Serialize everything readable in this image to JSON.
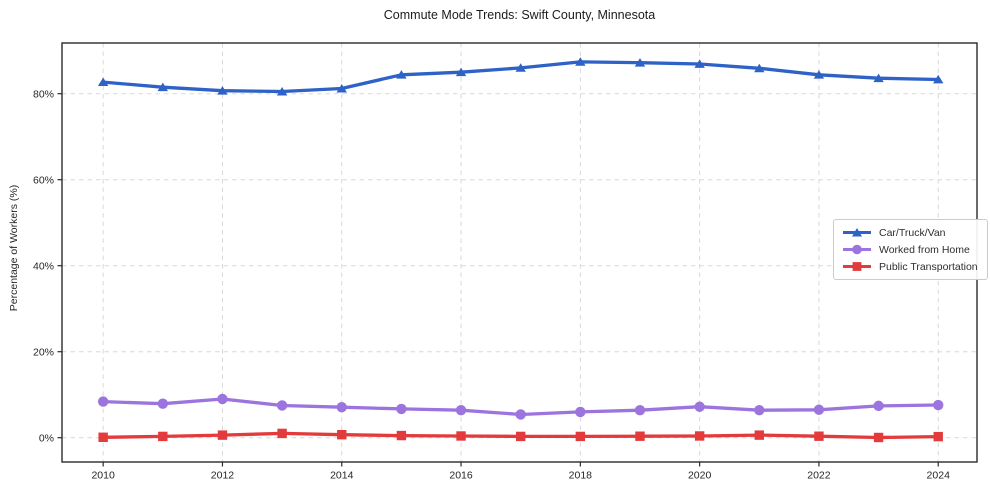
{
  "figure": {
    "title": "Commute Mode Trends: Swift County, Minnesota",
    "background_color": "#ffffff"
  },
  "chart_data": {
    "type": "line",
    "title": "Commute Mode Trends: Swift County, Minnesota",
    "xlabel": "",
    "ylabel": "Percentage of Workers (%)",
    "x": [
      2010,
      2011,
      2012,
      2013,
      2014,
      2015,
      2016,
      2017,
      2018,
      2019,
      2020,
      2021,
      2022,
      2023,
      2024
    ],
    "series": [
      {
        "name": "Car/Truck/Van",
        "color": "#2e62c6",
        "marker": "triangle",
        "values": [
          82.7,
          81.5,
          80.7,
          80.5,
          81.2,
          84.4,
          85.0,
          86.0,
          87.4,
          87.2,
          86.9,
          85.9,
          84.4,
          83.6,
          83.3
        ]
      },
      {
        "name": "Worked from Home",
        "color": "#9c74de",
        "marker": "circle",
        "values": [
          8.4,
          7.9,
          9.0,
          7.5,
          7.1,
          6.7,
          6.4,
          5.4,
          6.0,
          6.4,
          7.2,
          6.4,
          6.5,
          7.4,
          7.6
        ]
      },
      {
        "name": "Public Transportation",
        "color": "#e33b3b",
        "marker": "square",
        "values": [
          0.1,
          0.3,
          0.6,
          1.0,
          0.7,
          0.5,
          0.4,
          0.3,
          0.3,
          0.35,
          0.4,
          0.6,
          0.35,
          0.05,
          0.25
        ]
      }
    ],
    "xticks": [
      2010,
      2012,
      2014,
      2016,
      2018,
      2020,
      2022,
      2024
    ],
    "xtick_labels": [
      "2010",
      "2012",
      "2014",
      "2016",
      "2018",
      "2020",
      "2022",
      "2024"
    ],
    "yticks": [
      0,
      20,
      40,
      60,
      80
    ],
    "ytick_labels": [
      "0%",
      "20%",
      "40%",
      "60%",
      "80%"
    ],
    "xlim": [
      2009.31,
      2024.65
    ],
    "ylim": [
      -5.65,
      91.79
    ],
    "grid": true,
    "grid_color": "#d8d8d8",
    "axis_color": "#2b2b2b",
    "legend_position": "center right"
  }
}
